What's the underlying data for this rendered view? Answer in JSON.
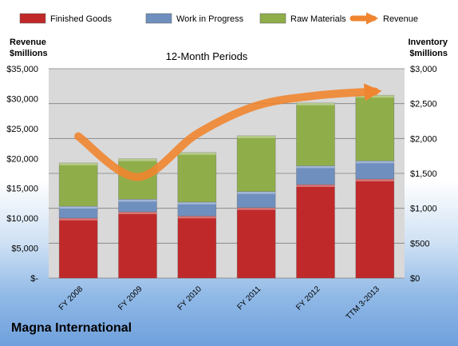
{
  "chart_data": {
    "type": "bar",
    "stacked": true,
    "subtitle": "12-Month Periods",
    "categories": [
      "FY 2008",
      "FY 2009",
      "FY 2010",
      "FY 2011",
      "FY 2012",
      "TTM 3-2013"
    ],
    "series": [
      {
        "name": "Finished Goods",
        "axis": "right",
        "color": "#c0292a",
        "values": [
          860,
          950,
          890,
          1010,
          1340,
          1420
        ]
      },
      {
        "name": "Work in Progress",
        "axis": "right",
        "color": "#6f8fbf",
        "values": [
          170,
          180,
          200,
          230,
          270,
          260
        ]
      },
      {
        "name": "Raw Materials",
        "axis": "right",
        "color": "#8fae4a",
        "values": [
          620,
          580,
          710,
          800,
          900,
          940
        ]
      },
      {
        "name": "Revenue",
        "axis": "left",
        "type": "line",
        "color": "#f0852f",
        "values": [
          23700,
          16900,
          24100,
          28800,
          30500,
          31200
        ]
      }
    ],
    "left_axis": {
      "title_lines": [
        "Revenue",
        "$millions"
      ],
      "range": [
        0,
        35000
      ],
      "ticks": [
        "$-",
        "$5,000",
        "$10,000",
        "$15,000",
        "$20,000",
        "$25,000",
        "$30,000",
        "$35,000"
      ]
    },
    "right_axis": {
      "title_lines": [
        "Inventory",
        "$millions"
      ],
      "range": [
        0,
        3000
      ],
      "ticks": [
        "$0",
        "$500",
        "$1,000",
        "$1,500",
        "$2,000",
        "$2,500",
        "$3,000"
      ]
    },
    "grid": true,
    "legend_position": "top"
  },
  "company": "Magna International"
}
